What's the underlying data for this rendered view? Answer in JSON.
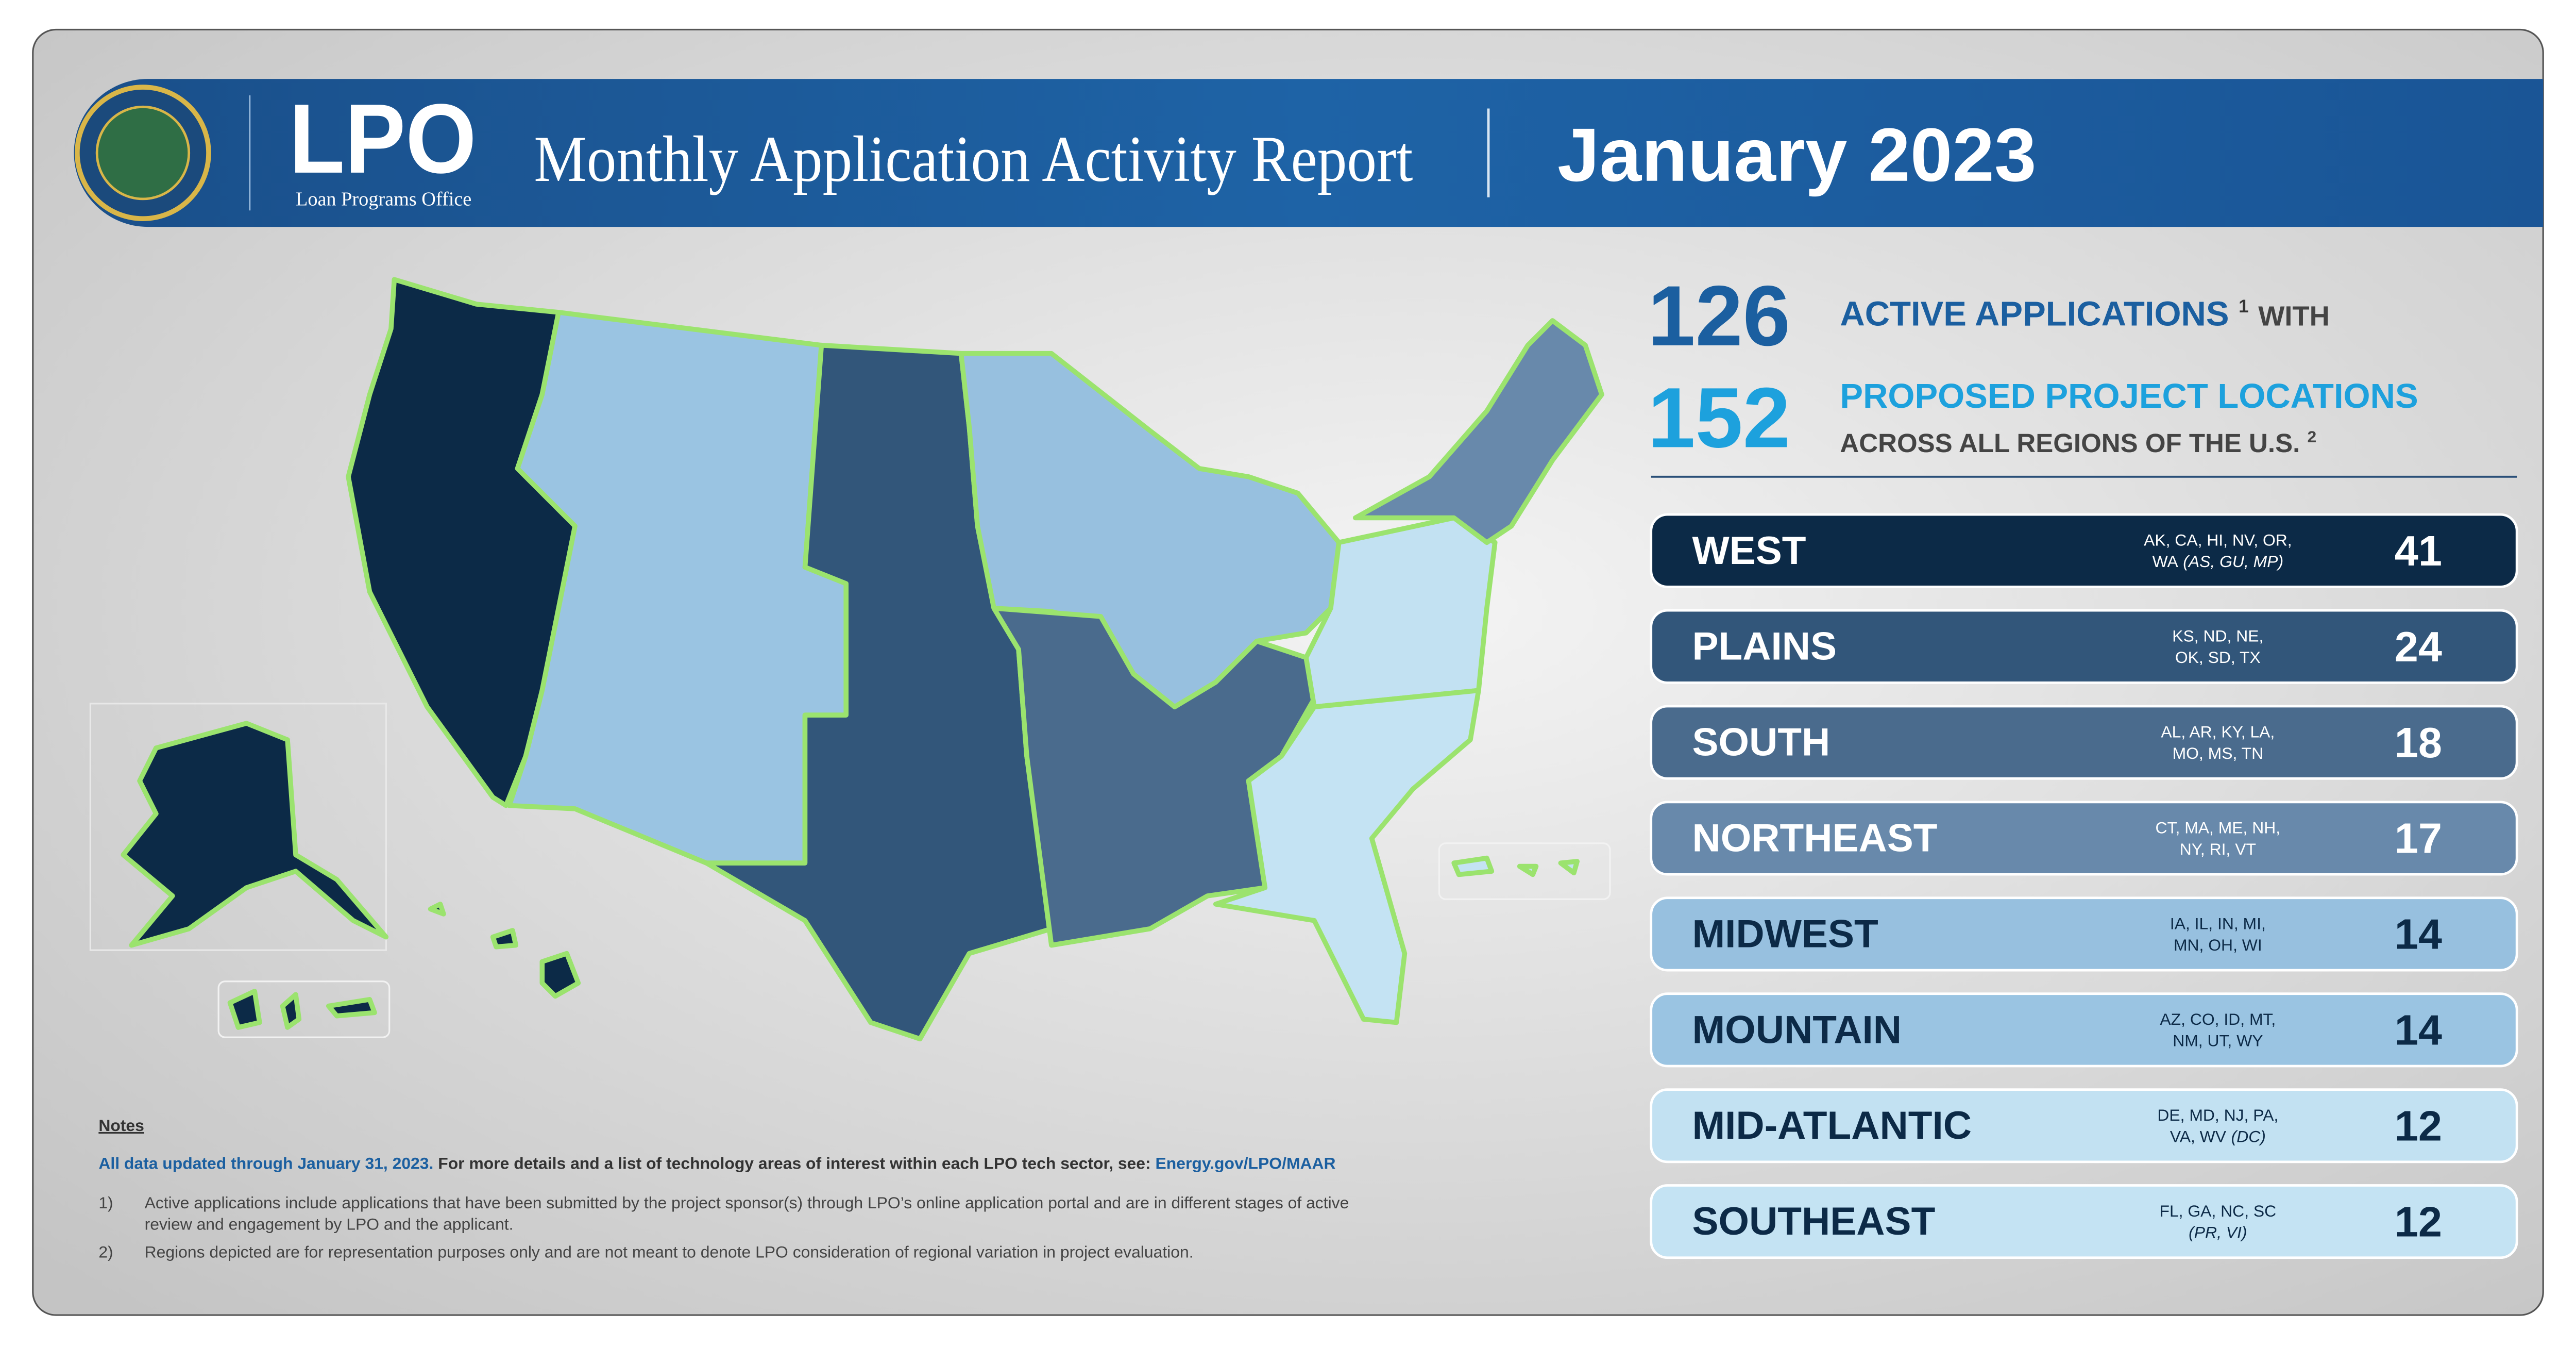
{
  "header": {
    "logo": "LPO",
    "logo_subtitle": "Loan Programs Office",
    "title": "Monthly Application Activity Report",
    "date": "January 2023"
  },
  "summary": {
    "applications": 126,
    "applications_label": "ACTIVE APPLICATIONS",
    "applications_footnote": "1",
    "with": "WITH",
    "locations": 152,
    "locations_label": "PROPOSED PROJECT LOCATIONS",
    "locations_sub": "ACROSS ALL REGIONS OF THE U.S.",
    "locations_footnote": "2"
  },
  "regions": [
    {
      "name": "WEST",
      "states": [
        "AK, CA, HI, NV, OR,",
        "WA"
      ],
      "territories": "(AS, GU, MP)",
      "count": 41,
      "color": "#0c2a47"
    },
    {
      "name": "PLAINS",
      "states": [
        "KS, ND, NE,",
        "OK, SD, TX"
      ],
      "count": 24,
      "color": "#32567a"
    },
    {
      "name": "SOUTH",
      "states": [
        "AL, AR, KY, LA,",
        "MO, MS, TN"
      ],
      "count": 18,
      "color": "#4a6b8d"
    },
    {
      "name": "NORTHEAST",
      "states": [
        "CT, MA, ME, NH,",
        "NY, RI, VT"
      ],
      "count": 17,
      "color": "#6889ab"
    },
    {
      "name": "MIDWEST",
      "states": [
        "IA, IL, IN, MI,",
        "MN, OH, WI"
      ],
      "count": 14,
      "color": "#97c0df"
    },
    {
      "name": "MOUNTAIN",
      "states": [
        "AZ, CO, ID, MT,",
        "NM, UT, WY"
      ],
      "count": 14,
      "color": "#9ac4e2"
    },
    {
      "name": "MID-ATLANTIC",
      "states": [
        "DE, MD, NJ, PA,",
        "VA, WV"
      ],
      "territories": "(DC)",
      "count": 12,
      "color": "#c2e1f2"
    },
    {
      "name": "SOUTHEAST",
      "states": [
        "FL, GA, NC, SC"
      ],
      "territories": "(PR, VI)",
      "count": 12,
      "color": "#c4e3f3"
    }
  ],
  "notes": {
    "heading": "Notes",
    "updated": "All data updated through January 31, 2023.",
    "details": "For more details and a list of technology areas of interest within each LPO tech sector, see:",
    "link": "Energy.gov/LPO/MAAR",
    "items": [
      {
        "marker": "1)",
        "lines": [
          "Active applications include applications that have been submitted by the project sponsor(s) through LPO’s online application portal and are in different stages of active",
          "review and engagement by LPO and the applicant."
        ]
      },
      {
        "marker": "2)",
        "lines": [
          "Regions depicted are for representation purposes only and are not meant to denote LPO consideration of regional variation in project evaluation."
        ]
      }
    ]
  }
}
